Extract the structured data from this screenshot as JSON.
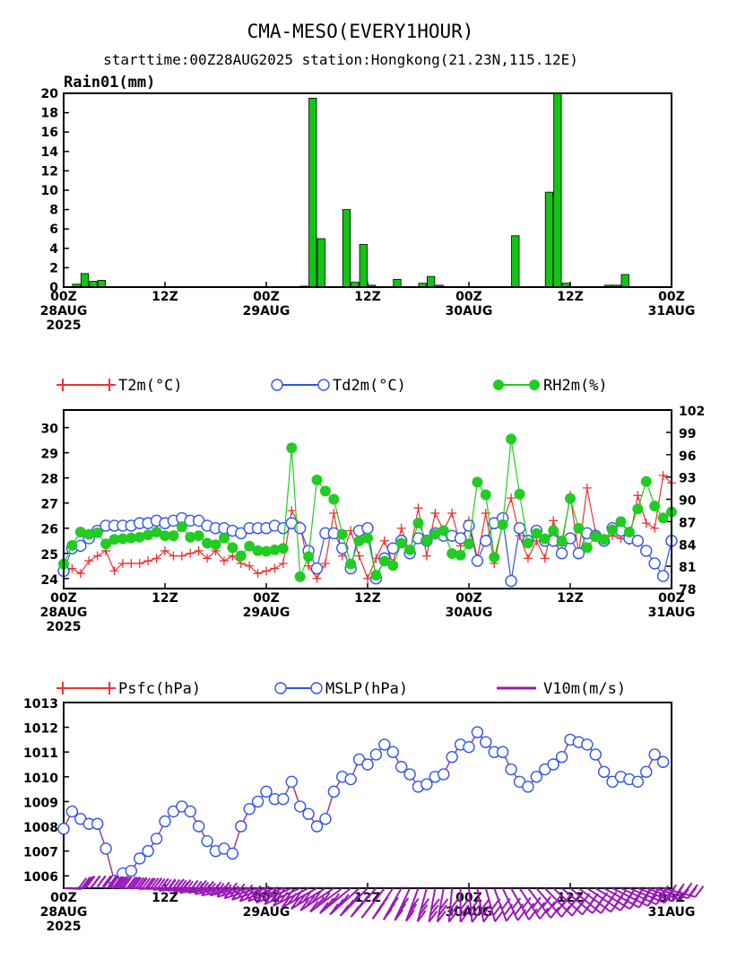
{
  "header": {
    "title": "CMA-MESO(EVERY1HOUR)",
    "subtitle": "starttime:00Z28AUG2025   station:Hongkong(21.23N,115.12E)"
  },
  "x_ticks": [
    {
      "hour": 0,
      "l1": "00Z",
      "l2": "28AUG",
      "l3": "2025"
    },
    {
      "hour": 12,
      "l1": "12Z",
      "l2": "",
      "l3": ""
    },
    {
      "hour": 24,
      "l1": "00Z",
      "l2": "29AUG",
      "l3": ""
    },
    {
      "hour": 36,
      "l1": "12Z",
      "l2": "",
      "l3": ""
    },
    {
      "hour": 48,
      "l1": "00Z",
      "l2": "30AUG",
      "l3": ""
    },
    {
      "hour": 60,
      "l1": "12Z",
      "l2": "",
      "l3": ""
    },
    {
      "hour": 72,
      "l1": "00Z",
      "l2": "31AUG",
      "l3": ""
    }
  ],
  "chart_data": [
    {
      "type": "bar",
      "title": "Rain01(mm)",
      "ylim": [
        0,
        20
      ],
      "yticks": [
        0,
        2,
        4,
        6,
        8,
        10,
        12,
        14,
        16,
        18,
        20
      ],
      "xlim": [
        0,
        72
      ],
      "bar_color": "#11c611",
      "x_hours": [
        0,
        1,
        2,
        3,
        4,
        5,
        6,
        7,
        8,
        9,
        10,
        11,
        12,
        13,
        14,
        15,
        16,
        17,
        18,
        19,
        20,
        21,
        22,
        23,
        24,
        25,
        26,
        27,
        28,
        29,
        30,
        31,
        32,
        33,
        34,
        35,
        36,
        37,
        38,
        39,
        40,
        41,
        42,
        43,
        44,
        45,
        46,
        47,
        48,
        49,
        50,
        51,
        52,
        53,
        54,
        55,
        56,
        57,
        58,
        59,
        60,
        61,
        62,
        63,
        64,
        65,
        66,
        67,
        68,
        69,
        70,
        71
      ],
      "values": [
        0,
        0.3,
        1.4,
        0.6,
        0.7,
        0,
        0,
        0,
        0,
        0,
        0,
        0,
        0,
        0,
        0,
        0,
        0,
        0,
        0,
        0,
        0,
        0,
        0,
        0,
        0,
        0,
        0,
        0,
        0.1,
        19.5,
        5,
        0,
        0,
        8,
        0.5,
        4.4,
        0.2,
        0,
        0,
        0.8,
        0,
        0,
        0.4,
        1.1,
        0.2,
        0,
        0,
        0,
        0,
        0,
        0,
        0,
        0,
        5.3,
        0,
        0,
        0,
        9.8,
        20,
        0.4,
        0,
        0,
        0,
        0,
        0.2,
        0.2,
        1.3,
        0,
        0,
        0,
        0,
        0
      ]
    },
    {
      "type": "line",
      "ylim_left": [
        23.6,
        30.7
      ],
      "yticks_left": [
        24,
        25,
        26,
        27,
        28,
        29,
        30
      ],
      "ylim_right": [
        78,
        102
      ],
      "yticks_right": [
        78,
        81,
        84,
        87,
        90,
        93,
        96,
        99,
        102
      ],
      "xlim": [
        0,
        72
      ],
      "series": [
        {
          "name": "T2m(°C)",
          "axis": "left",
          "color": "#ee3333",
          "marker": "plus",
          "values": [
            24.3,
            24.4,
            24.2,
            24.7,
            24.9,
            25.1,
            24.3,
            24.6,
            24.6,
            24.6,
            24.7,
            24.8,
            25.1,
            24.9,
            24.9,
            25.0,
            25.1,
            24.8,
            25.1,
            24.7,
            24.9,
            24.6,
            24.5,
            24.2,
            24.3,
            24.4,
            24.6,
            26.7,
            26.1,
            24.5,
            24.0,
            24.6,
            26.6,
            24.9,
            25.9,
            24.9,
            24.0,
            24.8,
            25.5,
            24.6,
            26.0,
            25.0,
            26.8,
            24.9,
            26.6,
            25.9,
            26.6,
            25.3,
            26.3,
            24.8,
            26.6,
            24.6,
            26.2,
            27.2,
            25.7,
            24.8,
            25.5,
            24.8,
            26.3,
            25.3,
            27.3,
            25.0,
            27.6,
            25.8,
            25.6,
            25.7,
            25.6,
            25.5,
            27.3,
            26.2,
            26.0,
            28.1,
            27.8
          ]
        },
        {
          "name": "Td2m(°C)",
          "axis": "left",
          "color": "#2f55e6",
          "marker": "circle",
          "values": [
            24.3,
            25.2,
            25.3,
            25.6,
            25.9,
            26.1,
            26.1,
            26.1,
            26.1,
            26.2,
            26.2,
            26.3,
            26.2,
            26.3,
            26.4,
            26.3,
            26.3,
            26.1,
            26.0,
            26.0,
            25.9,
            25.8,
            26.0,
            26.0,
            26.0,
            26.1,
            26.0,
            26.2,
            26.0,
            25.1,
            24.4,
            25.8,
            25.8,
            25.2,
            24.4,
            25.9,
            26.0,
            24.0,
            24.8,
            25.2,
            25.5,
            25.0,
            25.6,
            25.5,
            25.8,
            25.7,
            25.7,
            25.6,
            26.1,
            24.7,
            25.5,
            26.2,
            26.4,
            23.9,
            26.0,
            25.5,
            25.9,
            25.5,
            25.5,
            25.0,
            25.6,
            25.0,
            25.8,
            25.7,
            25.5,
            26.0,
            25.9,
            25.6,
            25.5,
            25.1,
            24.6,
            24.1,
            25.5
          ]
        },
        {
          "name": "RH2m(%)",
          "axis": "right",
          "color": "#22cc22",
          "marker": "dot",
          "values": [
            81.3,
            83.8,
            85.6,
            85.3,
            85.5,
            84,
            84.6,
            84.7,
            84.8,
            84.9,
            85.2,
            85.6,
            85.1,
            85.1,
            86.3,
            84.9,
            85.1,
            84.1,
            83.9,
            84.8,
            83.5,
            82.4,
            83.7,
            83.1,
            83.0,
            83.2,
            83.4,
            96.9,
            79.6,
            82.3,
            92.6,
            91.1,
            90.0,
            85.3,
            81.3,
            84.4,
            84.8,
            79.8,
            81.7,
            81.1,
            84.1,
            83.2,
            86.8,
            84.4,
            85.3,
            85.8,
            82.7,
            82.5,
            84.0,
            92.3,
            90.6,
            82.2,
            86.6,
            98.1,
            90.7,
            84.1,
            85.4,
            84.7,
            85.8,
            84.4,
            90.1,
            86.1,
            83.5,
            85.0,
            84.6,
            85.9,
            87.0,
            85.6,
            88.7,
            92.4,
            89.1,
            87.5,
            88.3
          ]
        }
      ]
    },
    {
      "type": "line",
      "ylim": [
        1005.5,
        1013
      ],
      "yticks": [
        1006,
        1007,
        1008,
        1009,
        1010,
        1011,
        1012,
        1013
      ],
      "xlim": [
        0,
        72
      ],
      "series": [
        {
          "name": "Psfc(hPa)",
          "color": "#ee3333",
          "marker": "plus",
          "values": [
            1007.9,
            1008.6,
            1008.3,
            1008.1,
            1008.1,
            1007.1,
            1005.8,
            1006.1,
            1006.2,
            1006.7,
            1007.0,
            1007.5,
            1008.2,
            1008.6,
            1008.8,
            1008.6,
            1008.0,
            1007.4,
            1007.0,
            1007.1,
            1006.9,
            1008.0,
            1008.7,
            1009.0,
            1009.4,
            1009.1,
            1009.1,
            1009.8,
            1008.8,
            1008.5,
            1008.0,
            1008.3,
            1009.4,
            1010.0,
            1009.9,
            1010.7,
            1010.5,
            1010.9,
            1011.3,
            1011.0,
            1010.4,
            1010.1,
            1009.6,
            1009.7,
            1010.0,
            1010.1,
            1010.8,
            1011.3,
            1011.2,
            1011.8,
            1011.4,
            1011.0,
            1011.0,
            1010.3,
            1009.8,
            1009.6,
            1010.0,
            1010.3,
            1010.5,
            1010.8,
            1011.5,
            1011.4,
            1011.3,
            1010.9,
            1010.2,
            1009.8,
            1010.0,
            1009.9,
            1009.8,
            1010.2,
            1010.9,
            1010.6
          ]
        },
        {
          "name": "MSLP(hPa)",
          "color": "#2f55e6",
          "marker": "circle",
          "values": [
            1007.9,
            1008.6,
            1008.3,
            1008.1,
            1008.1,
            1007.1,
            1005.8,
            1006.1,
            1006.2,
            1006.7,
            1007.0,
            1007.5,
            1008.2,
            1008.6,
            1008.8,
            1008.6,
            1008.0,
            1007.4,
            1007.0,
            1007.1,
            1006.9,
            1008.0,
            1008.7,
            1009.0,
            1009.4,
            1009.1,
            1009.1,
            1009.8,
            1008.8,
            1008.5,
            1008.0,
            1008.3,
            1009.4,
            1010.0,
            1009.9,
            1010.7,
            1010.5,
            1010.9,
            1011.3,
            1011.0,
            1010.4,
            1010.1,
            1009.6,
            1009.7,
            1010.0,
            1010.1,
            1010.8,
            1011.3,
            1011.2,
            1011.8,
            1011.4,
            1011.0,
            1011.0,
            1010.3,
            1009.8,
            1009.6,
            1010.0,
            1010.3,
            1010.5,
            1010.8,
            1011.5,
            1011.4,
            1011.3,
            1010.9,
            1010.2,
            1009.8,
            1010.0,
            1009.9,
            1009.8,
            1010.2,
            1010.9,
            1010.6
          ]
        },
        {
          "name": "V10m(m/s)",
          "color": "#9a1ab8",
          "marker": "wind-barb",
          "wind_dir_deg": [
            210,
            200,
            190,
            185,
            180,
            175,
            170,
            165,
            160,
            160,
            155,
            150,
            150,
            145,
            140,
            140,
            135,
            130,
            130,
            125,
            120,
            120,
            115,
            110,
            105,
            100,
            100,
            95,
            90,
            85,
            80,
            75,
            70,
            65,
            60,
            55,
            50,
            45,
            40,
            35,
            30,
            25,
            20,
            15,
            10,
            10,
            5,
            0,
            355,
            350,
            345,
            340,
            335,
            330,
            325,
            320,
            315,
            310,
            305,
            300,
            300,
            295,
            290,
            285,
            280,
            275,
            270,
            265,
            260,
            255,
            250,
            245
          ],
          "wind_speed_ms": [
            8,
            8,
            9,
            9,
            9,
            10,
            10,
            10,
            11,
            11,
            11,
            12,
            12,
            12,
            12,
            13,
            13,
            13,
            13,
            13,
            13,
            13,
            13,
            13,
            13,
            12,
            12,
            12,
            12,
            12,
            12,
            12,
            11,
            11,
            11,
            11,
            11,
            11,
            11,
            11,
            11,
            11,
            11,
            11,
            11,
            11,
            11,
            11,
            11,
            11,
            11,
            11,
            11,
            10,
            10,
            10,
            10,
            10,
            10,
            10,
            10,
            10,
            10,
            10,
            10,
            10,
            10,
            10,
            10,
            10,
            10,
            10
          ]
        }
      ]
    }
  ]
}
